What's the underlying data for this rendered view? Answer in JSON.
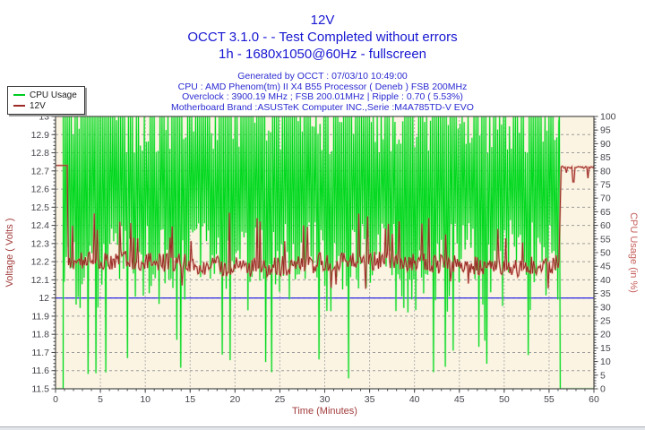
{
  "header": {
    "title": "12V",
    "status_line": "OCCT 3.1.0 -  - Test Completed without errors",
    "config_line": "1h - 1680x1050@60Hz - fullscreen",
    "info_lines": [
      "Generated by OCCT : 07/03/10 10:49:00",
      "CPU : AMD Phenom(tm) II X4 B55 Processor ( Deneb ) FSB 200MHz",
      "Overclock : 3900.19 MHz ; FSB 200.01MHz | Ripple : 0.70 ( 5.53%)",
      "Motherboard Brand :ASUSTeK Computer INC.,Serie :M4A785TD-V EVO"
    ],
    "title_color": "#1717d2",
    "info_color": "#2a2ad2"
  },
  "legend": {
    "items": [
      {
        "label": "CPU Usage",
        "color": "#00cc22"
      },
      {
        "label": "12V",
        "color": "#9b2a26"
      }
    ]
  },
  "chart_data": {
    "type": "line",
    "title": "12V",
    "xlabel": "Time (Minutes)",
    "ylabel_left": "Voltage ( Volts )",
    "ylabel_right": "CPU Usage (in %)",
    "x_range": [
      0,
      60
    ],
    "x_ticks": [
      0,
      5,
      10,
      15,
      20,
      25,
      30,
      35,
      40,
      45,
      50,
      55,
      60
    ],
    "x_minor_step": 1,
    "y_left_range": [
      11.5,
      13.0
    ],
    "y_left_ticks": [
      11.5,
      11.6,
      11.7,
      11.8,
      11.9,
      12.0,
      12.1,
      12.2,
      12.3,
      12.4,
      12.5,
      12.6,
      12.7,
      12.8,
      12.9,
      13.0
    ],
    "y_left_minor_step": 0.02,
    "y_right_range": [
      0,
      100
    ],
    "y_right_ticks": [
      0,
      5,
      10,
      15,
      20,
      25,
      30,
      35,
      40,
      45,
      50,
      55,
      60,
      65,
      70,
      75,
      80,
      85,
      90,
      95,
      100
    ],
    "y_right_minor_step": 1,
    "grid": true,
    "legend_position": "top-left",
    "plot_background": "#fbf4e2",
    "grid_color": "#9c9c9c",
    "grid_color_vertical": "#b3b3b3",
    "axis_color": "#4a4a4a",
    "tick_label_color": "#45454d",
    "xlabel_color": "#a23c3c",
    "ylabel_left_color": "#a23c3c",
    "ylabel_right_color": "#c6605c",
    "reference_line": {
      "axis": "left",
      "value": 12.0,
      "color": "#1212e6"
    },
    "series": [
      {
        "name": "CPU Usage",
        "axis": "right",
        "color": "#00d81e",
        "halo_color": "rgba(120,235,120,0.45)",
        "profile": {
          "idle_value_pct": 0,
          "idle_until_min": 0.85,
          "load_until_min": 56.1,
          "peak_pct": 100,
          "peak_probability": 0.7,
          "sub_peak_pct": [
            86,
            99
          ],
          "dip_typical_pct": [
            28,
            62
          ],
          "deep_dip_pct": [
            3,
            20
          ],
          "deep_dip_probability": 0.06,
          "sample_step_min": 0.11
        }
      },
      {
        "name": "12V",
        "axis": "left",
        "color": "#992b26",
        "halo_color": "rgba(222,128,116,0.5)",
        "profile": {
          "idle_level_v": 12.73,
          "idle_until_min": 1.3,
          "load_mean_v": 12.2,
          "load_noise_v": 0.055,
          "load_until_min": 56.1,
          "spike_probability": 0.04,
          "spike_level_v": [
            12.3,
            12.47
          ],
          "forced_spikes": [
            [
              7.2,
              12.42
            ],
            [
              19.4,
              12.47
            ],
            [
              22.5,
              12.44
            ],
            [
              27.6,
              12.4
            ],
            [
              34.8,
              12.45
            ],
            [
              49.3,
              12.38
            ]
          ],
          "post_level_v": 12.72,
          "post_dips": [
            [
              56.9,
              12.69
            ],
            [
              57.7,
              12.64
            ],
            [
              59.3,
              12.66
            ]
          ],
          "sample_step_min": 0.11
        }
      }
    ]
  }
}
